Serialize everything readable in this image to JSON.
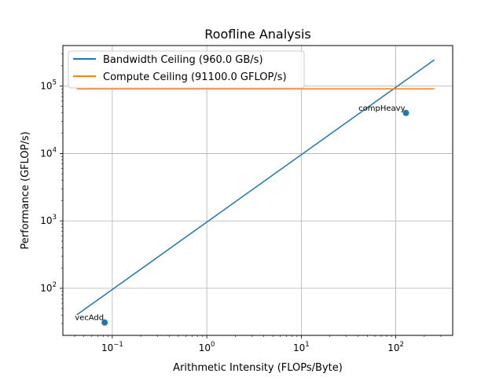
{
  "chart_data": {
    "type": "line",
    "title": "Roofline Analysis",
    "xlabel": "Arithmetic Intensity (FLOPs/Byte)",
    "ylabel": "Performance (GFLOP/s)",
    "xscale": "log",
    "yscale": "log",
    "xlim": [
      0.03,
      400
    ],
    "ylim": [
      20,
      400000
    ],
    "grid": true,
    "legend": "top-left",
    "x_ticks": [
      {
        "value": 0.1,
        "base": "10",
        "exp": "−1"
      },
      {
        "value": 1,
        "base": "10",
        "exp": "0"
      },
      {
        "value": 10,
        "base": "10",
        "exp": "1"
      },
      {
        "value": 100,
        "base": "10",
        "exp": "2"
      }
    ],
    "y_ticks": [
      {
        "value": 100,
        "base": "10",
        "exp": "2"
      },
      {
        "value": 1000,
        "base": "10",
        "exp": "3"
      },
      {
        "value": 10000,
        "base": "10",
        "exp": "4"
      },
      {
        "value": 100000,
        "base": "10",
        "exp": "5"
      }
    ],
    "series": [
      {
        "name": "Bandwidth Ceiling (960.0 GB/s)",
        "color": "#1f77b4",
        "points": [
          [
            0.042,
            40.3
          ],
          [
            256,
            245760
          ]
        ]
      },
      {
        "name": "Compute Ceiling (91100.0 GFLOP/s)",
        "color": "#ff7f0e",
        "points": [
          [
            0.042,
            91100
          ],
          [
            256,
            91100
          ]
        ]
      }
    ],
    "scatter": {
      "color": "#1f77b4",
      "points": [
        {
          "label": "vecAdd",
          "x": 0.083,
          "y": 31
        },
        {
          "label": "compHeavy",
          "x": 128,
          "y": 40000
        }
      ]
    }
  }
}
